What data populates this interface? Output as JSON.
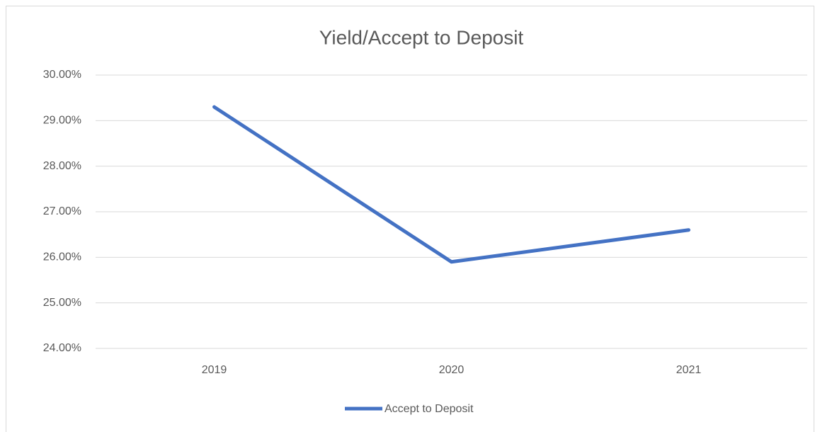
{
  "chart_data": {
    "type": "line",
    "title": "Yield/Accept to Deposit",
    "categories": [
      "2019",
      "2020",
      "2021"
    ],
    "series": [
      {
        "name": "Accept to Deposit",
        "color": "#4472c4",
        "values": [
          29.3,
          25.9,
          26.6
        ]
      }
    ],
    "ylim": [
      24,
      30
    ],
    "yticks": [
      {
        "value": 24,
        "label": "24.00%"
      },
      {
        "value": 25,
        "label": "25.00%"
      },
      {
        "value": 26,
        "label": "26.00%"
      },
      {
        "value": 27,
        "label": "27.00%"
      },
      {
        "value": 28,
        "label": "28.00%"
      },
      {
        "value": 29,
        "label": "29.00%"
      },
      {
        "value": 30,
        "label": "30.00%"
      }
    ],
    "grid": true,
    "legend": "bottom"
  }
}
